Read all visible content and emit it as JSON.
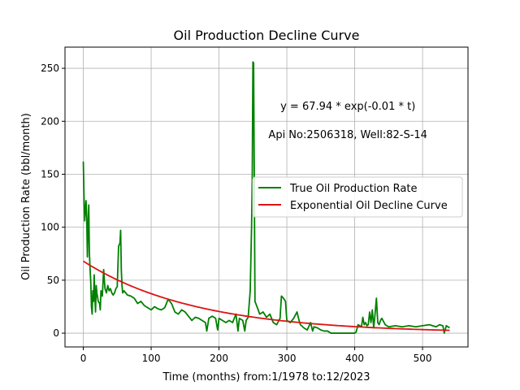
{
  "chart_data": {
    "type": "line",
    "title": "Oil Production Decline Curve",
    "xlabel": "Time (months) from:1/1978 to:12/2023",
    "ylabel": "Oil Production Rate (bbl/month)",
    "xlim": [
      -27,
      567
    ],
    "ylim": [
      -13,
      270
    ],
    "x_ticks": [
      0,
      100,
      200,
      300,
      400,
      500
    ],
    "y_ticks": [
      0,
      50,
      100,
      150,
      200,
      250
    ],
    "grid": true,
    "legend_position": "center-right",
    "annotations": [
      {
        "text": "y = 67.94 * exp(-0.01 * t)",
        "x": 390,
        "y": 211
      },
      {
        "text": "Api No:2506318, Well:82-S-14",
        "x": 390,
        "y": 184
      }
    ],
    "series": [
      {
        "name": "True Oil Production Rate",
        "color": "#008000",
        "points": [
          [
            0,
            162
          ],
          [
            1,
            130
          ],
          [
            2,
            106
          ],
          [
            3,
            115
          ],
          [
            4,
            125
          ],
          [
            5,
            110
          ],
          [
            6,
            72
          ],
          [
            7,
            100
          ],
          [
            8,
            121
          ],
          [
            9,
            75
          ],
          [
            10,
            60
          ],
          [
            11,
            48
          ],
          [
            12,
            25
          ],
          [
            13,
            18
          ],
          [
            14,
            40
          ],
          [
            15,
            30
          ],
          [
            16,
            55
          ],
          [
            17,
            35
          ],
          [
            18,
            20
          ],
          [
            19,
            45
          ],
          [
            20,
            38
          ],
          [
            22,
            30
          ],
          [
            24,
            28
          ],
          [
            25,
            22
          ],
          [
            26,
            40
          ],
          [
            28,
            35
          ],
          [
            30,
            60
          ],
          [
            31,
            50
          ],
          [
            32,
            42
          ],
          [
            34,
            38
          ],
          [
            36,
            45
          ],
          [
            38,
            40
          ],
          [
            40,
            42
          ],
          [
            42,
            38
          ],
          [
            44,
            36
          ],
          [
            46,
            38
          ],
          [
            48,
            42
          ],
          [
            50,
            44
          ],
          [
            52,
            82
          ],
          [
            54,
            85
          ],
          [
            55,
            97
          ],
          [
            56,
            60
          ],
          [
            57,
            45
          ],
          [
            58,
            38
          ],
          [
            60,
            40
          ],
          [
            65,
            36
          ],
          [
            70,
            35
          ],
          [
            75,
            33
          ],
          [
            80,
            28
          ],
          [
            85,
            30
          ],
          [
            90,
            26
          ],
          [
            95,
            24
          ],
          [
            100,
            22
          ],
          [
            105,
            25
          ],
          [
            110,
            23
          ],
          [
            115,
            22
          ],
          [
            120,
            24
          ],
          [
            125,
            32
          ],
          [
            130,
            28
          ],
          [
            135,
            20
          ],
          [
            140,
            18
          ],
          [
            145,
            22
          ],
          [
            150,
            20
          ],
          [
            155,
            16
          ],
          [
            160,
            12
          ],
          [
            165,
            15
          ],
          [
            170,
            14
          ],
          [
            175,
            12
          ],
          [
            180,
            10
          ],
          [
            182,
            2
          ],
          [
            185,
            14
          ],
          [
            190,
            16
          ],
          [
            195,
            14
          ],
          [
            198,
            3
          ],
          [
            200,
            14
          ],
          [
            205,
            12
          ],
          [
            210,
            10
          ],
          [
            215,
            12
          ],
          [
            220,
            10
          ],
          [
            225,
            18
          ],
          [
            228,
            2
          ],
          [
            230,
            14
          ],
          [
            235,
            12
          ],
          [
            238,
            2
          ],
          [
            240,
            12
          ],
          [
            243,
            15
          ],
          [
            246,
            40
          ],
          [
            248,
            100
          ],
          [
            249,
            148
          ],
          [
            250,
            256
          ],
          [
            251,
            255
          ],
          [
            252,
            145
          ],
          [
            253,
            30
          ],
          [
            256,
            25
          ],
          [
            260,
            18
          ],
          [
            265,
            20
          ],
          [
            270,
            15
          ],
          [
            275,
            18
          ],
          [
            280,
            10
          ],
          [
            285,
            8
          ],
          [
            290,
            14
          ],
          [
            292,
            35
          ],
          [
            295,
            33
          ],
          [
            298,
            30
          ],
          [
            300,
            12
          ],
          [
            305,
            10
          ],
          [
            310,
            14
          ],
          [
            315,
            20
          ],
          [
            318,
            12
          ],
          [
            320,
            8
          ],
          [
            325,
            5
          ],
          [
            330,
            3
          ],
          [
            335,
            10
          ],
          [
            338,
            2
          ],
          [
            340,
            6
          ],
          [
            345,
            5
          ],
          [
            350,
            3
          ],
          [
            355,
            2
          ],
          [
            360,
            2
          ],
          [
            365,
            0
          ],
          [
            370,
            0
          ],
          [
            380,
            0
          ],
          [
            390,
            0
          ],
          [
            395,
            0
          ],
          [
            400,
            0
          ],
          [
            402,
            1
          ],
          [
            405,
            8
          ],
          [
            410,
            6
          ],
          [
            412,
            15
          ],
          [
            414,
            8
          ],
          [
            416,
            10
          ],
          [
            418,
            7
          ],
          [
            420,
            8
          ],
          [
            422,
            20
          ],
          [
            424,
            10
          ],
          [
            426,
            22
          ],
          [
            428,
            5
          ],
          [
            430,
            18
          ],
          [
            432,
            33
          ],
          [
            434,
            10
          ],
          [
            436,
            8
          ],
          [
            438,
            12
          ],
          [
            440,
            14
          ],
          [
            445,
            8
          ],
          [
            450,
            6
          ],
          [
            460,
            7
          ],
          [
            470,
            6
          ],
          [
            480,
            7
          ],
          [
            490,
            6
          ],
          [
            500,
            7
          ],
          [
            510,
            8
          ],
          [
            520,
            6
          ],
          [
            525,
            8
          ],
          [
            530,
            7
          ],
          [
            532,
            0
          ],
          [
            535,
            7
          ],
          [
            540,
            5
          ]
        ]
      },
      {
        "name": "Exponential Oil Decline Curve",
        "color": "#dc1414",
        "equation": {
          "a": 67.94,
          "b": 0.006
        }
      }
    ]
  }
}
